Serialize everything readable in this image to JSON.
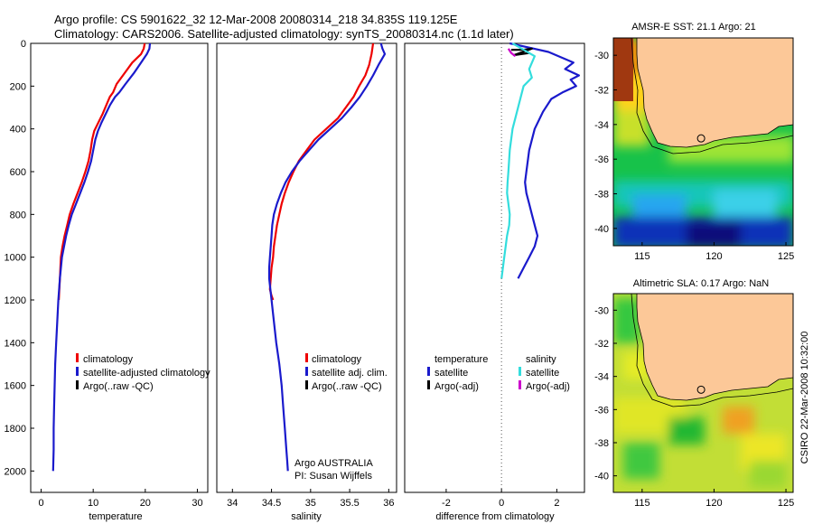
{
  "header": {
    "line1": "Argo profile: CS 5901622_32 12-Mar-2008 20080314_218 34.835S 119.125E",
    "line2": "Climatology: CARS2006. Satellite-adjusted climatology: synTS_20080314.nc (1.1d later)"
  },
  "colors": {
    "climatology": "#ee0000",
    "satellite": "#1a1acc",
    "argo": "#000000",
    "satellite_salinity": "#33dddd",
    "argo_salinity": "#cc00cc",
    "land": "#fcc898",
    "zero_line": "#555555"
  },
  "credits": {
    "argo_line1": "Argo AUSTRALIA",
    "argo_line2": "PI: Susan Wijffels",
    "stamp": "CSIRO 22-Mar-2008 10:32:00"
  },
  "chart_data": [
    {
      "type": "line",
      "name": "temperature-panel",
      "xlabel": "temperature",
      "ylabel": "",
      "xlim": [
        -2,
        32
      ],
      "ylim": [
        0,
        2100
      ],
      "y_reversed": true,
      "xticks": [
        0,
        10,
        20,
        30
      ],
      "yticks": [
        0,
        200,
        400,
        600,
        800,
        1000,
        1200,
        1400,
        1600,
        1800,
        2000
      ],
      "legend": [
        "climatology",
        "satellite-adjusted climatology",
        "Argo(..raw -QC)"
      ],
      "series": [
        {
          "name": "climatology",
          "x": [
            19.9,
            19.7,
            19.2,
            17.5,
            16.0,
            14.5,
            13.8,
            13.2,
            12.5,
            11.8,
            11.0,
            10.2,
            9.8,
            9.5,
            9.1,
            8.5,
            7.8,
            7.0,
            6.2,
            5.5,
            5.0,
            4.5,
            4.1,
            3.8,
            3.6,
            3.4
          ],
          "y": [
            0,
            25,
            50,
            90,
            140,
            190,
            230,
            250,
            290,
            330,
            370,
            410,
            450,
            500,
            550,
            600,
            650,
            700,
            750,
            800,
            850,
            900,
            950,
            1000,
            1100,
            1200
          ]
        },
        {
          "name": "satellite-adjusted climatology",
          "x": [
            20.9,
            20.8,
            20.3,
            19.2,
            17.8,
            16.2,
            15.0,
            14.2,
            13.2,
            12.4,
            11.6,
            10.9,
            10.4,
            10.0,
            9.6,
            9.0,
            8.3,
            7.5,
            6.7,
            5.9,
            5.3,
            4.8,
            4.4,
            4.0,
            3.6,
            3.3,
            3.1,
            2.9,
            2.7,
            2.6,
            2.5,
            2.4,
            2.4,
            2.3
          ],
          "y": [
            0,
            25,
            50,
            90,
            140,
            190,
            230,
            250,
            290,
            330,
            370,
            410,
            450,
            500,
            550,
            600,
            650,
            700,
            750,
            800,
            850,
            900,
            950,
            1000,
            1100,
            1200,
            1300,
            1400,
            1500,
            1600,
            1700,
            1800,
            1900,
            2000
          ]
        },
        {
          "name": "Argo(..raw -QC)",
          "x": [],
          "y": []
        }
      ]
    },
    {
      "type": "line",
      "name": "salinity-panel",
      "xlabel": "salinity",
      "ylabel": "",
      "xlim": [
        33.8,
        36.1
      ],
      "ylim": [
        0,
        2100
      ],
      "y_reversed": true,
      "xticks": [
        34,
        34.5,
        35,
        35.5,
        36
      ],
      "legend": [
        "climatology",
        "satellite adj. clim.",
        "Argo(..raw -QC)"
      ],
      "series": [
        {
          "name": "climatology",
          "x": [
            35.8,
            35.79,
            35.78,
            35.75,
            35.7,
            35.62,
            35.55,
            35.45,
            35.35,
            35.2,
            35.05,
            34.95,
            34.85,
            34.78,
            34.72,
            34.67,
            34.63,
            34.6,
            34.57,
            34.55,
            34.53,
            34.52,
            34.5,
            34.49,
            34.48,
            34.5,
            34.52
          ],
          "y": [
            0,
            25,
            50,
            100,
            150,
            200,
            250,
            300,
            350,
            400,
            450,
            500,
            550,
            600,
            650,
            700,
            750,
            800,
            850,
            900,
            950,
            1000,
            1050,
            1100,
            1150,
            1180,
            1200
          ]
        },
        {
          "name": "satellite adj. clim.",
          "x": [
            35.9,
            35.92,
            35.95,
            35.87,
            35.8,
            35.72,
            35.63,
            35.52,
            35.4,
            35.25,
            35.1,
            34.98,
            34.86,
            34.76,
            34.68,
            34.62,
            34.57,
            34.53,
            34.51,
            34.5,
            34.49,
            34.48,
            34.47,
            34.47,
            34.5,
            34.53,
            34.56,
            34.6,
            34.63,
            34.65,
            34.67,
            34.69,
            34.7,
            34.71
          ],
          "y": [
            0,
            25,
            50,
            100,
            150,
            200,
            250,
            300,
            350,
            400,
            450,
            500,
            550,
            600,
            650,
            700,
            750,
            800,
            850,
            900,
            950,
            1000,
            1050,
            1100,
            1200,
            1300,
            1400,
            1500,
            1600,
            1700,
            1800,
            1900,
            1950,
            2000
          ]
        },
        {
          "name": "Argo(..raw -QC)",
          "x": [],
          "y": []
        }
      ]
    },
    {
      "type": "line",
      "name": "difference-panel",
      "xlabel": "difference from climatology",
      "ylabel": "",
      "xlim": [
        -3.5,
        3.0
      ],
      "ylim": [
        0,
        2100
      ],
      "y_reversed": true,
      "xticks": [
        -2,
        0,
        2
      ],
      "zero_line": true,
      "legend": [
        "temperature",
        "satellite",
        "Argo(-adj)",
        "salinity",
        "satellite",
        "Argo(-adj)"
      ],
      "series": [
        {
          "name": "temperature satellite",
          "x": [
            0.3,
            1.0,
            1.7,
            2.6,
            2.3,
            2.8,
            2.5,
            2.7,
            2.2,
            1.8,
            1.5,
            1.2,
            1.0,
            0.9,
            0.85,
            0.9,
            1.0,
            1.1,
            1.2,
            1.3,
            1.2,
            1.0,
            0.8,
            0.6
          ],
          "y": [
            0,
            20,
            40,
            90,
            120,
            150,
            170,
            200,
            230,
            260,
            320,
            400,
            500,
            600,
            650,
            700,
            750,
            800,
            850,
            900,
            950,
            1000,
            1050,
            1100
          ]
        },
        {
          "name": "temperature Argo(-adj)",
          "x": [
            0.35,
            0.8,
            1.1,
            0.45,
            1.0
          ],
          "y": [
            30,
            30,
            25,
            55,
            45
          ]
        },
        {
          "name": "salinity satellite",
          "x": [
            0.4,
            0.8,
            1.2,
            1.0,
            1.1,
            0.8,
            0.6,
            0.4,
            0.3,
            0.25,
            0.22,
            0.2,
            0.25,
            0.3,
            0.28,
            0.2,
            0.1,
            0.0
          ],
          "y": [
            0,
            30,
            60,
            120,
            160,
            200,
            300,
            400,
            500,
            600,
            650,
            700,
            750,
            800,
            850,
            900,
            1000,
            1100
          ]
        },
        {
          "name": "salinity Argo(-adj)",
          "x": [
            0.25,
            0.35,
            0.5
          ],
          "y": [
            25,
            45,
            60
          ]
        }
      ]
    },
    {
      "type": "heatmap",
      "name": "sst-map",
      "title": "AMSR-E SST: 21.1 Argo: 21",
      "xlim": [
        113,
        125.5
      ],
      "ylim": [
        -41,
        -29
      ],
      "xticks": [
        115,
        120,
        125
      ],
      "yticks": [
        -30,
        -32,
        -34,
        -36,
        -38,
        -40
      ],
      "argo_position": [
        119.1,
        -34.8
      ]
    },
    {
      "type": "heatmap",
      "name": "sla-map",
      "title": "Altimetric SLA: 0.17 Argo: NaN",
      "xlim": [
        113,
        125.5
      ],
      "ylim": [
        -41,
        -29
      ],
      "xticks": [
        115,
        120,
        125
      ],
      "yticks": [
        -30,
        -32,
        -34,
        -36,
        -38,
        -40
      ],
      "argo_position": [
        119.1,
        -34.8
      ]
    }
  ]
}
